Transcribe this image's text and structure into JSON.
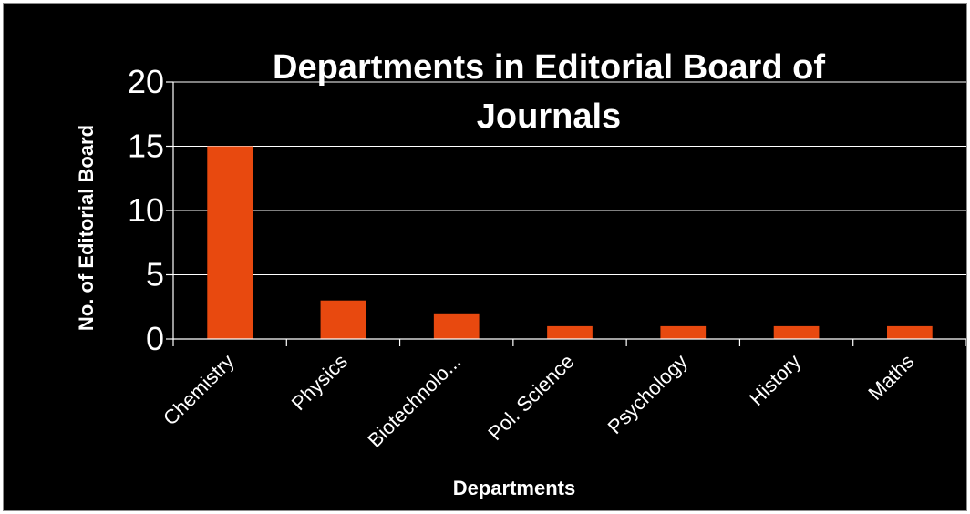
{
  "chart_data": {
    "type": "bar",
    "title_lines": [
      "Departments in Editorial Board of",
      "Journals"
    ],
    "xlabel": "Departments",
    "ylabel": "No. of Editorial Board",
    "categories": [
      "Chemistry",
      "Physics",
      "Biotechnolo...",
      "Pol. Science",
      "Psychology",
      "History",
      "Maths"
    ],
    "values": [
      15,
      3,
      2,
      1,
      1,
      1,
      1
    ],
    "ylim": [
      0,
      20
    ],
    "yticks": [
      0,
      5,
      10,
      15,
      20
    ],
    "grid": true,
    "legend": "none",
    "colors": {
      "bar": "#E8490F",
      "background": "#000000",
      "grid": "#ffffff",
      "text": "#ffffff"
    }
  }
}
